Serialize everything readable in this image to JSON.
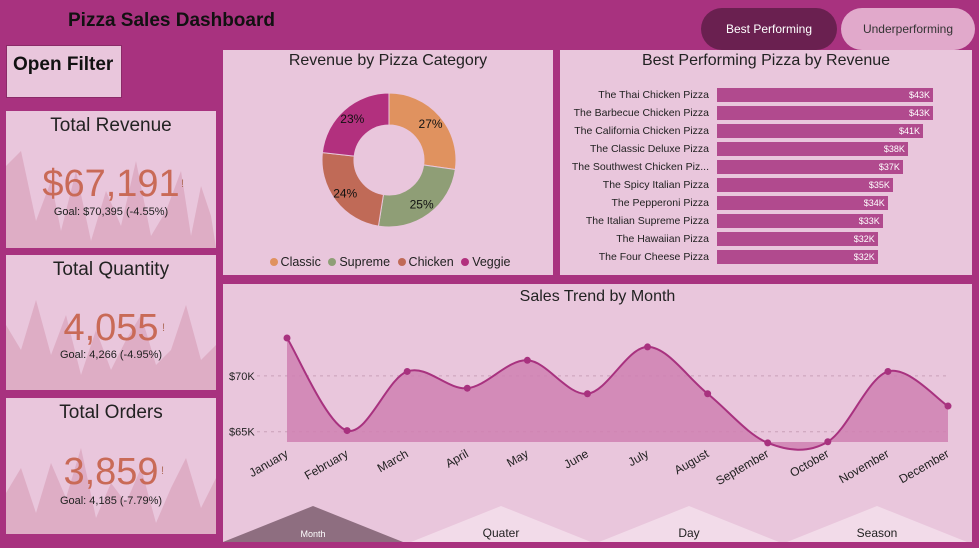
{
  "header": {
    "title": "Pizza Sales Dashboard"
  },
  "buttons": {
    "best": "Best Performing",
    "under": "Underperforming",
    "open_filter": "Open Filter"
  },
  "kpis": [
    {
      "title": "Total Revenue",
      "value": "$67,191",
      "goal": "Goal: $70,395 (-4.55%)"
    },
    {
      "title": "Total Quantity",
      "value": "4,055",
      "goal": "Goal: 4,266 (-4.95%)"
    },
    {
      "title": "Total Orders",
      "value": "3,859",
      "goal": "Goal: 4,185 (-7.79%)"
    }
  ],
  "alert_mark": "!",
  "colors": {
    "classic": "#e0925f",
    "supreme": "#8f9e76",
    "chicken": "#c06a57",
    "veggie": "#b2307e",
    "bar": "#b14a8e",
    "trend": "#a8327f"
  },
  "donut": {
    "title": "Revenue by Pizza Category",
    "slices": [
      {
        "name": "Classic",
        "pct": 27,
        "label": "27%"
      },
      {
        "name": "Supreme",
        "pct": 25,
        "label": "25%"
      },
      {
        "name": "Chicken",
        "pct": 24,
        "label": "24%"
      },
      {
        "name": "Veggie",
        "pct": 23,
        "label": "23%"
      }
    ]
  },
  "bars": {
    "title": "Best Performing Pizza by Revenue",
    "items": [
      {
        "name": "The Thai Chicken Pizza",
        "value": 43,
        "label": "$43K"
      },
      {
        "name": "The Barbecue Chicken Pizza",
        "value": 43,
        "label": "$43K"
      },
      {
        "name": "The California Chicken Pizza",
        "value": 41,
        "label": "$41K"
      },
      {
        "name": "The Classic Deluxe Pizza",
        "value": 38,
        "label": "$38K"
      },
      {
        "name": "The Southwest Chicken Piz...",
        "value": 37,
        "label": "$37K"
      },
      {
        "name": "The Spicy Italian Pizza",
        "value": 35,
        "label": "$35K"
      },
      {
        "name": "The Pepperoni Pizza",
        "value": 34,
        "label": "$34K"
      },
      {
        "name": "The Italian Supreme Pizza",
        "value": 33,
        "label": "$33K"
      },
      {
        "name": "The Hawaiian Pizza",
        "value": 32,
        "label": "$32K"
      },
      {
        "name": "The Four Cheese Pizza",
        "value": 32,
        "label": "$32K"
      }
    ]
  },
  "chart_data": {
    "type": "area",
    "title": "Sales Trend by Month",
    "categories": [
      "January",
      "February",
      "March",
      "April",
      "May",
      "June",
      "July",
      "August",
      "September",
      "October",
      "November",
      "December"
    ],
    "values": [
      73.4,
      65.1,
      70.4,
      68.9,
      71.4,
      68.4,
      72.6,
      68.4,
      64.0,
      64.1,
      70.4,
      67.3
    ],
    "yticks": [
      {
        "v": 70,
        "label": "$70K"
      },
      {
        "v": 65,
        "label": "$65K"
      }
    ],
    "ylim": [
      63.0,
      76.0
    ]
  },
  "tabs": [
    "Month",
    "Quater",
    "Day",
    "Season"
  ]
}
